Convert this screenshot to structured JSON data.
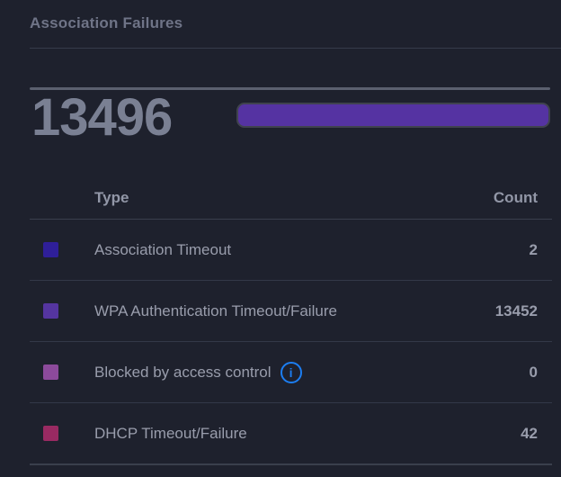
{
  "panel": {
    "title": "Association Failures",
    "total": "13496"
  },
  "bar": {
    "color": "#5533a2",
    "width_percent": 100
  },
  "table": {
    "headers": {
      "type": "Type",
      "count": "Count"
    },
    "rows": [
      {
        "label": "Association Timeout",
        "count": "2",
        "color": "#2f1f99"
      },
      {
        "label": "WPA Authentication Timeout/Failure",
        "count": "13452",
        "color": "#5535a0"
      },
      {
        "label": "Blocked by access control",
        "count": "0",
        "color": "#8c4a9b",
        "info_icon": "i"
      },
      {
        "label": "DHCP Timeout/Failure",
        "count": "42",
        "color": "#992a62"
      }
    ]
  },
  "colors": {
    "info_blue": "#1c7ef2",
    "bar_purple": "#5533a2",
    "background": "#1e212d"
  },
  "chart_data": {
    "type": "bar",
    "title": "Association Failures",
    "total": 13496,
    "categories": [
      "Association Timeout",
      "WPA Authentication Timeout/Failure",
      "Blocked by access control",
      "DHCP Timeout/Failure"
    ],
    "values": [
      2,
      13452,
      0,
      42
    ],
    "series_colors": [
      "#2f1f99",
      "#5535a0",
      "#8c4a9b",
      "#992a62"
    ],
    "legend_position": "table-below"
  }
}
